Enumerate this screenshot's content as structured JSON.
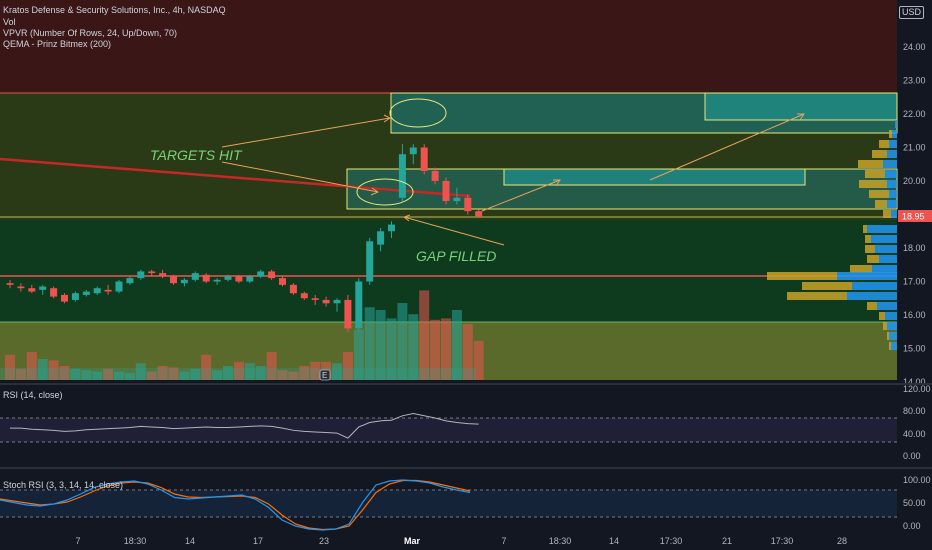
{
  "legend": {
    "symbol": "Kratos Defense & Security Solutions, Inc., 4h, NASDAQ",
    "vol": "Vol",
    "vpvr": "VPVR (Number Of Rows, 24, Up/Down, 70)",
    "qema": "QEMA - Prinz Bitmex (200)"
  },
  "currency": "USD",
  "price_axis": {
    "ticks": [
      "24.00",
      "23.00",
      "22.00",
      "21.00",
      "20.00",
      "19.00",
      "18.00",
      "17.00",
      "16.00",
      "15.00",
      "14.00"
    ],
    "last_price": "18.95",
    "last_price_color": "#ef5350"
  },
  "time_axis": {
    "ticks": [
      "7",
      "18:30",
      "14",
      "17",
      "23",
      "Mar",
      "7",
      "18:30",
      "14",
      "17:30",
      "21",
      "17:30",
      "28"
    ]
  },
  "annotations": {
    "targets_hit": "TARGETS HIT",
    "gap_filled": "GAP FILLED"
  },
  "rsi": {
    "label": "RSI (14, close)",
    "ticks": [
      "120.00",
      "80.00",
      "40.00",
      "0.00"
    ]
  },
  "stoch": {
    "label": "Stoch RSI (3, 3, 14, 14, close)",
    "ticks": [
      "100.00",
      "50.00",
      "0.00"
    ]
  },
  "colors": {
    "up": "#26a69a",
    "down": "#ef5350",
    "zone_red": "#3a1616",
    "zone_olive": "#7a8a3a",
    "zone_green": "#0e3a1e",
    "box_stroke": "#e8e87a",
    "rsi_line": "#b2b5be",
    "stoch_k": "#2196f3",
    "stoch_d": "#ff6d00",
    "vpvr_up": "#2196f3",
    "vpvr_down": "#c9a227"
  },
  "chart_data": {
    "type": "candlestick",
    "candles": [
      [
        16.95,
        17.05,
        16.8,
        16.9
      ],
      [
        16.85,
        16.95,
        16.7,
        16.8
      ],
      [
        16.8,
        16.9,
        16.65,
        16.7
      ],
      [
        16.75,
        16.9,
        16.6,
        16.85
      ],
      [
        16.8,
        16.85,
        16.5,
        16.55
      ],
      [
        16.6,
        16.65,
        16.35,
        16.4
      ],
      [
        16.45,
        16.7,
        16.4,
        16.65
      ],
      [
        16.6,
        16.75,
        16.55,
        16.7
      ],
      [
        16.65,
        16.85,
        16.6,
        16.8
      ],
      [
        16.75,
        16.9,
        16.6,
        16.7
      ],
      [
        16.7,
        17.05,
        16.65,
        17.0
      ],
      [
        16.95,
        17.15,
        16.9,
        17.1
      ],
      [
        17.1,
        17.35,
        17.05,
        17.3
      ],
      [
        17.3,
        17.35,
        17.15,
        17.25
      ],
      [
        17.25,
        17.35,
        17.1,
        17.15
      ],
      [
        17.15,
        17.2,
        16.9,
        16.95
      ],
      [
        16.95,
        17.1,
        16.85,
        17.05
      ],
      [
        17.05,
        17.3,
        17.0,
        17.25
      ],
      [
        17.2,
        17.25,
        16.95,
        17.0
      ],
      [
        17.0,
        17.1,
        16.9,
        17.05
      ],
      [
        17.05,
        17.2,
        17.0,
        17.15
      ],
      [
        17.15,
        17.2,
        16.95,
        17.0
      ],
      [
        17.0,
        17.2,
        16.95,
        17.15
      ],
      [
        17.15,
        17.35,
        17.1,
        17.3
      ],
      [
        17.3,
        17.35,
        17.05,
        17.1
      ],
      [
        17.1,
        17.15,
        16.85,
        16.9
      ],
      [
        16.9,
        16.95,
        16.6,
        16.65
      ],
      [
        16.65,
        16.7,
        16.45,
        16.5
      ],
      [
        16.5,
        16.6,
        16.3,
        16.45
      ],
      [
        16.45,
        16.55,
        16.25,
        16.35
      ],
      [
        16.35,
        16.5,
        16.1,
        16.45
      ],
      [
        16.45,
        16.6,
        15.5,
        15.6
      ],
      [
        15.6,
        17.1,
        15.5,
        17.0
      ],
      [
        17.0,
        18.3,
        16.9,
        18.2
      ],
      [
        18.1,
        18.6,
        17.9,
        18.5
      ],
      [
        18.5,
        18.8,
        18.3,
        18.7
      ],
      [
        19.5,
        21.1,
        19.4,
        20.8
      ],
      [
        20.8,
        21.1,
        20.5,
        21.0
      ],
      [
        21.0,
        21.1,
        20.2,
        20.3
      ],
      [
        20.3,
        20.4,
        19.9,
        20.0
      ],
      [
        20.0,
        20.1,
        19.3,
        19.4
      ],
      [
        19.4,
        19.8,
        19.3,
        19.5
      ],
      [
        19.5,
        19.6,
        19.0,
        19.1
      ],
      [
        19.1,
        19.15,
        18.9,
        18.95
      ]
    ],
    "volume_bars_relative": [
      0.18,
      0.08,
      0.2,
      0.15,
      0.14,
      0.1,
      0.08,
      0.07,
      0.06,
      0.08,
      0.06,
      0.05,
      0.12,
      0.06,
      0.1,
      0.09,
      0.06,
      0.08,
      0.18,
      0.07,
      0.1,
      0.13,
      0.12,
      0.1,
      0.2,
      0.07,
      0.06,
      0.1,
      0.13,
      0.13,
      0.12,
      0.2,
      0.36,
      0.52,
      0.5,
      0.44,
      0.55,
      0.47,
      0.64,
      0.43,
      0.44,
      0.5,
      0.4,
      0.28
    ],
    "rsi_values": [
      50,
      50,
      48,
      47,
      46,
      44,
      45,
      47,
      48,
      49,
      50,
      51,
      53,
      52,
      51,
      49,
      50,
      51,
      52,
      51,
      51,
      52,
      53,
      54,
      53,
      50,
      46,
      44,
      43,
      42,
      41,
      32,
      52,
      60,
      63,
      64,
      72,
      76,
      72,
      68,
      63,
      60,
      58,
      57
    ],
    "stoch_k": [
      60,
      55,
      50,
      48,
      52,
      60,
      72,
      85,
      92,
      96,
      98,
      92,
      80,
      65,
      62,
      64,
      66,
      68,
      70,
      62,
      45,
      20,
      8,
      2,
      0,
      2,
      12,
      55,
      90,
      98,
      100,
      98,
      94,
      86,
      80,
      75
    ],
    "stoch_d": [
      62,
      58,
      54,
      50,
      52,
      56,
      66,
      78,
      88,
      94,
      96,
      94,
      85,
      72,
      66,
      65,
      66,
      67,
      68,
      65,
      52,
      30,
      12,
      4,
      1,
      2,
      8,
      40,
      75,
      92,
      99,
      99,
      96,
      90,
      84,
      78
    ]
  }
}
